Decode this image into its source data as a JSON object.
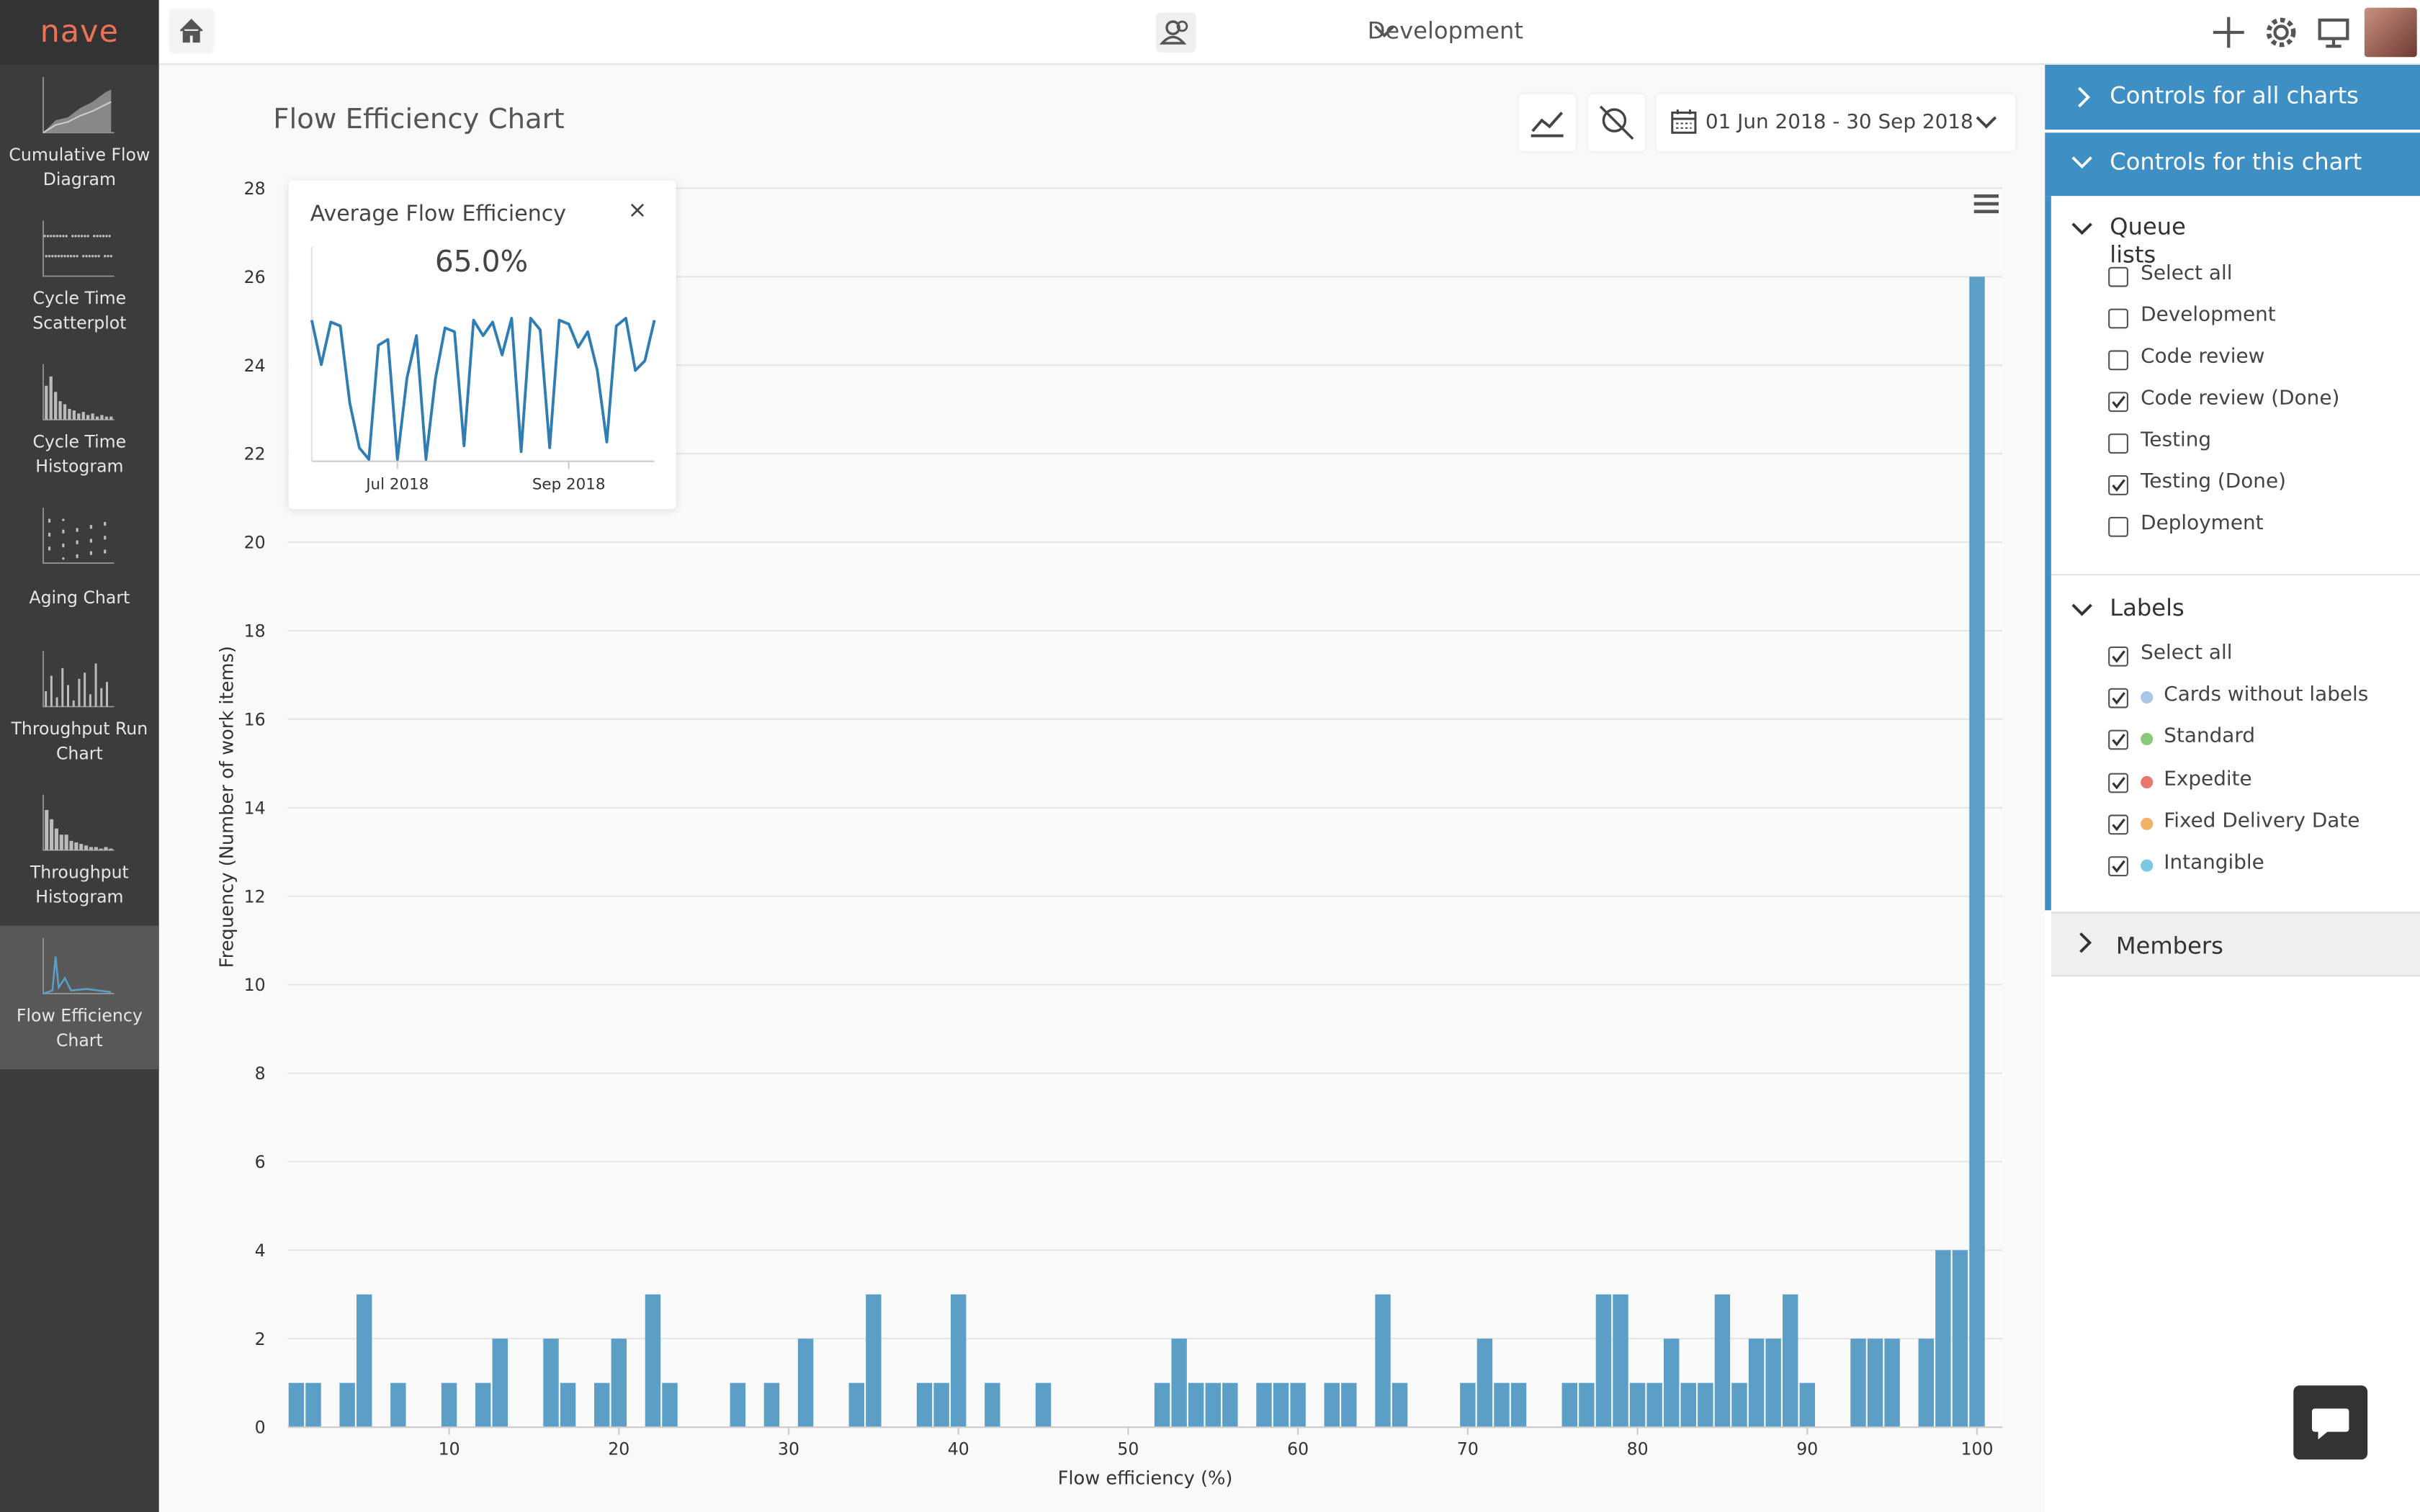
{
  "sidebar": {
    "logo": "nave",
    "active": 6,
    "items": [
      "Cumulative Flow Diagram",
      "Cycle Time Scatterplot",
      "Cycle Time Histogram",
      "Aging Chart",
      "Throughput Run Chart",
      "Throughput Histogram",
      "Flow Efficiency Chart"
    ]
  },
  "topbar": {
    "board": "Development"
  },
  "page_title": "Flow Efficiency Chart",
  "date_range": "01 Jun 2018 - 30 Sep 2018",
  "controls": {
    "all_charts": "Controls for all charts",
    "this_chart": "Controls for this chart",
    "queue_lists": {
      "title": "Queue lists",
      "items": [
        {
          "name": "Select all",
          "checked": false
        },
        {
          "name": "Development",
          "checked": false
        },
        {
          "name": "Code review",
          "checked": false
        },
        {
          "name": "Code review (Done)",
          "checked": true
        },
        {
          "name": "Testing",
          "checked": false
        },
        {
          "name": "Testing (Done)",
          "checked": true
        },
        {
          "name": "Deployment",
          "checked": false
        }
      ]
    },
    "labels": {
      "title": "Labels",
      "items": [
        {
          "name": "Select all",
          "checked": true,
          "color": null
        },
        {
          "name": "Cards without labels",
          "checked": true,
          "color": "#a9c8e8"
        },
        {
          "name": "Standard",
          "checked": true,
          "color": "#8bc97a"
        },
        {
          "name": "Expedite",
          "checked": true,
          "color": "#e9766c"
        },
        {
          "name": "Fixed Delivery Date",
          "checked": true,
          "color": "#f3b266"
        },
        {
          "name": "Intangible",
          "checked": true,
          "color": "#7cc6e6"
        }
      ]
    },
    "members": "Members"
  },
  "chart_data": [
    {
      "type": "histogram",
      "x_label": "Flow efficiency (%)",
      "y_label": "Frequency (Number of work items)",
      "color": "#5b9fc6",
      "grid": true,
      "bins": [
        0.5,
        1.5,
        2.5,
        3.5,
        4.5,
        5.5,
        6.5,
        7.5,
        8.5,
        9.5,
        10.5,
        11.5,
        12.5,
        13.5,
        14.5,
        15.5,
        16.5,
        17.5,
        18.5,
        19.5,
        20.5,
        21.5,
        22.5,
        23.5,
        24.5,
        25.5,
        26.5,
        27.5,
        28.5,
        29.5,
        30.5,
        31.5,
        32.5,
        33.5,
        34.5,
        35.5,
        36.5,
        37.5,
        38.5,
        39.5,
        40.5,
        41.5,
        42.5,
        43.5,
        44.5,
        45.5,
        46.5,
        47.5,
        48.5,
        49.5,
        50.5,
        51.5,
        52.5,
        53.5,
        54.5,
        55.5,
        56.5,
        57.5,
        58.5,
        59.5,
        60.5,
        61.5,
        62.5,
        63.5,
        64.5,
        65.5,
        66.5,
        67.5,
        68.5,
        69.5,
        70.5,
        71.5,
        72.5,
        73.5,
        74.5,
        75.5,
        76.5,
        77.5,
        78.5,
        79.5,
        80.5,
        81.5,
        82.5,
        83.5,
        84.5,
        85.5,
        86.5,
        87.5,
        88.5,
        89.5,
        90.5,
        91.5,
        92.5,
        93.5,
        94.5,
        95.5,
        96.5,
        97.5,
        98.5,
        99.5,
        100.5
      ],
      "values": [
        1,
        1,
        0,
        1,
        3,
        0,
        1,
        0,
        0,
        1,
        0,
        1,
        2,
        0,
        0,
        2,
        1,
        0,
        1,
        2,
        0,
        3,
        1,
        0,
        0,
        0,
        1,
        0,
        1,
        0,
        2,
        0,
        0,
        1,
        3,
        0,
        0,
        1,
        1,
        3,
        0,
        1,
        0,
        0,
        1,
        0,
        0,
        0,
        0,
        0,
        0,
        1,
        2,
        1,
        1,
        1,
        0,
        1,
        1,
        1,
        0,
        1,
        1,
        0,
        3,
        1,
        0,
        0,
        0,
        1,
        2,
        1,
        1,
        0,
        0,
        1,
        1,
        3,
        3,
        1,
        1,
        2,
        1,
        1,
        3,
        1,
        2,
        2,
        3,
        1,
        0,
        0,
        2,
        2,
        2,
        0,
        2,
        4,
        4,
        26
      ],
      "xlim": [
        0.5,
        101.5
      ],
      "xticks": [
        10,
        20,
        30,
        40,
        50,
        60,
        70,
        80,
        90,
        100
      ],
      "ylim": [
        0,
        28
      ],
      "yticks": [
        0,
        2,
        4,
        6,
        8,
        10,
        12,
        14,
        16,
        18,
        20,
        22,
        24,
        26,
        28
      ]
    },
    {
      "type": "line",
      "title": "Average Flow Efficiency",
      "subtitle": "65.0%",
      "color": "#2f7db3",
      "categories": [
        null,
        null,
        null,
        null,
        null,
        null,
        null,
        null,
        null,
        "Jul 2018",
        null,
        null,
        null,
        null,
        null,
        null,
        null,
        null,
        null,
        null,
        null,
        null,
        null,
        null,
        null,
        null,
        null,
        "Sep 2018",
        null,
        null,
        null,
        null,
        null,
        null,
        null,
        null,
        null
      ],
      "values": [
        98,
        75,
        97,
        95,
        55,
        32,
        26,
        85,
        88,
        26,
        68,
        90,
        26,
        68,
        94,
        92,
        33,
        98,
        90,
        97,
        80,
        99,
        30,
        99,
        93,
        32,
        98,
        96,
        84,
        92,
        72,
        35,
        95,
        99,
        72,
        77,
        98
      ],
      "ylim": [
        25,
        100
      ]
    }
  ]
}
